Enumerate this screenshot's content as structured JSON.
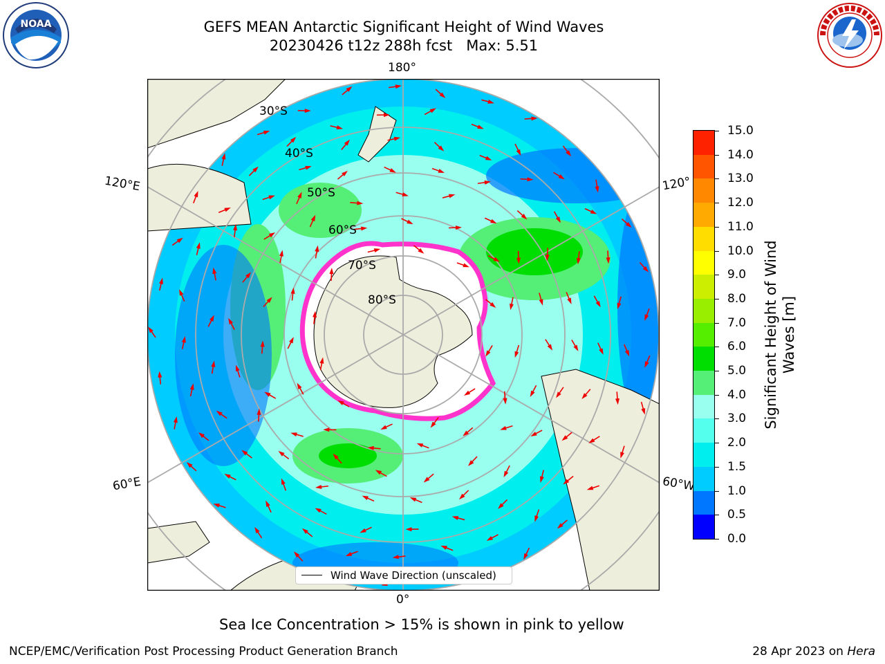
{
  "title": {
    "line1": "GEFS MEAN Antarctic Significant Height of Wind Waves",
    "line2": "20230426 t12z 288h fcst   Max: 5.51"
  },
  "map": {
    "projection": "south-polar-stereographic",
    "legend_label": "Wind Wave Direction (unscaled)",
    "lat_labels": [
      "30°S",
      "40°S",
      "50°S",
      "60°S",
      "70°S",
      "80°S"
    ],
    "lon_labels": {
      "top": "180°",
      "bottom": "0°",
      "upper_left": "120°E",
      "lower_left": "60°E",
      "upper_right": "120°",
      "lower_right": "60°W"
    },
    "colors": {
      "land": "#eeeedc",
      "ice_fill": "#ffffff",
      "ice_edge": "#ff33cc",
      "arrow": "#ee0000",
      "grid": "#aaaaaa"
    }
  },
  "colorbar": {
    "label": "Significant Height of Wind Waves [m]",
    "ticks": [
      "0.0",
      "0.5",
      "1.0",
      "1.5",
      "2.0",
      "3.0",
      "4.0",
      "5.0",
      "6.0",
      "7.0",
      "8.0",
      "9.0",
      "10.0",
      "11.0",
      "12.0",
      "13.0",
      "14.0",
      "15.0"
    ],
    "colors": [
      "#0000ff",
      "#0077ff",
      "#00ccff",
      "#00eeee",
      "#55ffee",
      "#99ffee",
      "#55ee77",
      "#00dd00",
      "#55ee00",
      "#99ee00",
      "#ccee00",
      "#ffff00",
      "#ffdd00",
      "#ffaa00",
      "#ff8800",
      "#ff5500",
      "#ff2200"
    ]
  },
  "note": "Sea Ice Concentration > 15% is shown in pink to yellow",
  "footer": {
    "left": "NCEP/EMC/Verification Post Processing Product Generation Branch",
    "right_date": "28 Apr 2023 on ",
    "right_host": "Hera"
  }
}
